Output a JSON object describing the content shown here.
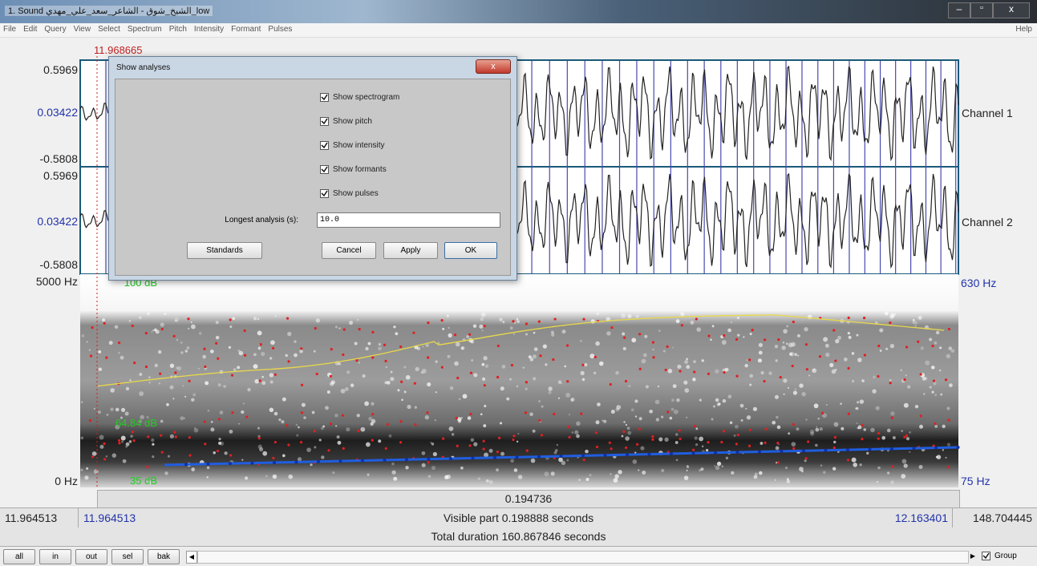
{
  "window": {
    "title": "1. Sound الشيخ_شوق - الشاعر_سعد_علي_مهدي_low",
    "menu": [
      "File",
      "Edit",
      "Query",
      "View",
      "Select",
      "Spectrum",
      "Pitch",
      "Intensity",
      "Formant",
      "Pulses"
    ],
    "help": "Help"
  },
  "editor": {
    "cursor_time": "11.968665",
    "channels": [
      {
        "name": "Channel 1",
        "max": "0.5969",
        "cursor_value": "0.03422",
        "min": "-0.5808"
      },
      {
        "name": "Channel 2",
        "max": "0.5969",
        "cursor_value": "0.03422",
        "min": "-0.5808"
      }
    ],
    "spectrogram": {
      "freq_max": "5000 Hz",
      "freq_min": "0 Hz",
      "intensity_max": "100 dB",
      "intensity_value": "64.84 dB",
      "intensity_min": "35 dB",
      "pitch_max": "630 Hz",
      "pitch_min": "75 Hz"
    },
    "selection_duration": "0.194736",
    "window_start": "11.964513",
    "visible_start": "11.964513",
    "visible_part": "Visible part 0.198888 seconds",
    "visible_end": "12.163401",
    "window_end": "148.704445",
    "total_duration": "Total duration 160.867846 seconds"
  },
  "dialog": {
    "title": "Show analyses",
    "options": [
      "Show spectrogram",
      "Show pitch",
      "Show intensity",
      "Show formants",
      "Show pulses"
    ],
    "longest_label": "Longest analysis (s):",
    "longest_value": "10.0",
    "buttons": {
      "standards": "Standards",
      "cancel": "Cancel",
      "apply": "Apply",
      "ok": "OK"
    }
  },
  "bottom_bar": {
    "buttons": [
      "all",
      "in",
      "out",
      "sel",
      "bak"
    ],
    "group": "Group"
  }
}
